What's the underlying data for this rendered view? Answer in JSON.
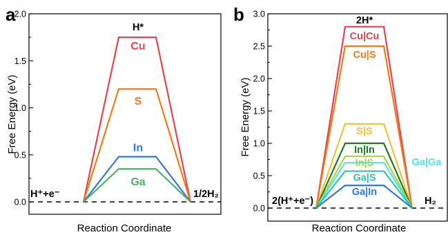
{
  "chart_data": [
    {
      "type": "line",
      "panel": "a",
      "xlabel": "Reaction Coordinate",
      "ylabel": "Free Energy (eV)",
      "ylim": [
        0,
        2.0
      ],
      "yticks": [
        "0.0",
        "0.5",
        "1.0",
        "1.5",
        "2.0"
      ],
      "top_label": "H*",
      "left_label": "H⁺+e⁻",
      "right_label": "1/2H₂",
      "series": [
        {
          "name": "Cu",
          "value": 1.75,
          "color": "#e8434b"
        },
        {
          "name": "S",
          "value": 1.2,
          "color": "#f07a1a"
        },
        {
          "name": "In",
          "value": 0.48,
          "color": "#2f7ad8"
        },
        {
          "name": "Ga",
          "value": 0.35,
          "color": "#4caf6a"
        }
      ]
    },
    {
      "type": "line",
      "panel": "b",
      "xlabel": "Reaction Coordinate",
      "ylabel": "Free Energy (eV)",
      "ylim": [
        0,
        3.0
      ],
      "yticks": [
        "0.0",
        "0.5",
        "1.0",
        "1.5",
        "2.0",
        "2.5",
        "3.0"
      ],
      "top_label": "2H*",
      "left_label": "2(H⁺+e⁻)",
      "right_label": "H₂",
      "series": [
        {
          "name": "Cu|Cu",
          "value": 2.8,
          "color": "#e8434b"
        },
        {
          "name": "Cu|S",
          "value": 2.5,
          "color": "#f07a1a"
        },
        {
          "name": "S|S",
          "value": 1.3,
          "color": "#f0c23a"
        },
        {
          "name": "In|In",
          "value": 1.0,
          "color": "#1f7a1f"
        },
        {
          "name": "In|S",
          "value": 0.8,
          "color": "#a8d63a"
        },
        {
          "name": "Ga|Ga",
          "value": 0.7,
          "color": "#4fe3e8"
        },
        {
          "name": "Ga|S",
          "value": 0.57,
          "color": "#2ec4a6"
        },
        {
          "name": "Ga|In",
          "value": 0.35,
          "color": "#2f7ad8"
        }
      ]
    }
  ]
}
